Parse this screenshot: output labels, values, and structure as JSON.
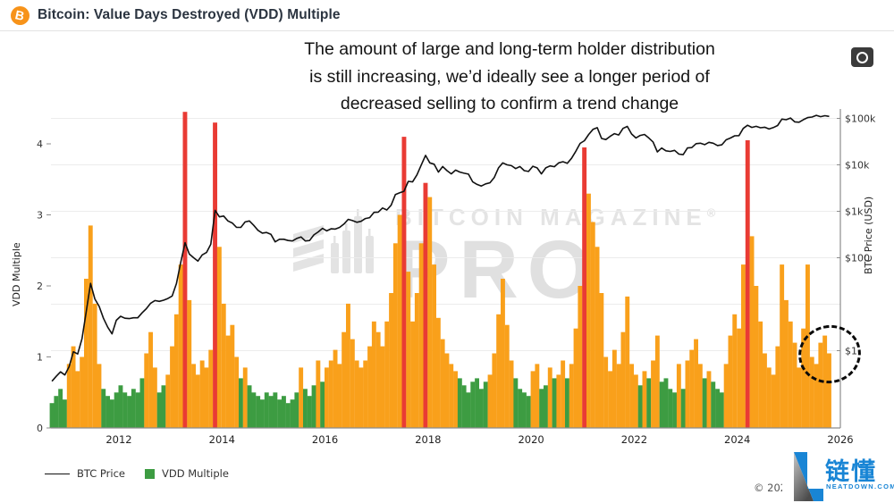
{
  "header": {
    "title": "Bitcoin: Value Days Destroyed (VDD) Multiple",
    "icon": "bitcoin-logo",
    "icon_letter": "B",
    "icon_color": "#f7931a"
  },
  "annotation": {
    "lines": [
      "The amount of large and long-term holder distribution",
      "is still increasing, we’d ideally see a longer period of",
      "decreased selling to confirm a trend change"
    ]
  },
  "toolbar": {
    "camera_button": "screenshot"
  },
  "watermark": {
    "line1": "BITCOIN MAGAZINE",
    "reg": "®",
    "line2": "PRO"
  },
  "legend": {
    "items": [
      {
        "label": "BTC Price",
        "type": "line",
        "color": "#111111"
      },
      {
        "label": "VDD Multiple",
        "type": "square",
        "color": "#3d9c42"
      }
    ]
  },
  "footer": {
    "copyright": "© 2025"
  },
  "brand": {
    "cn": "链懂",
    "site": "NEATDOWN.COM",
    "color": "#1985d5"
  },
  "chart_data": {
    "type": "bar",
    "title": "Bitcoin: Value Days Destroyed (VDD) Multiple",
    "grid": "horizontal-log-decades",
    "x_axis": {
      "ticks": [
        "2012",
        "2014",
        "2016",
        "2018",
        "2020",
        "2022",
        "2024",
        "2026"
      ],
      "range": [
        2010.7,
        2026.0
      ]
    },
    "y_left": {
      "label": "VDD Multiple",
      "ticks": [
        "0",
        "1",
        "2",
        "3",
        "4"
      ],
      "tick_values": [
        0,
        1,
        2,
        3,
        4
      ],
      "range": [
        0,
        4.5
      ]
    },
    "y_right": {
      "label": "BTC Price (USD)",
      "scale": "log",
      "ticks": [
        "$100k",
        "$10k",
        "$1k",
        "$100",
        "$1"
      ],
      "tick_values": [
        100000,
        10000,
        1000,
        100,
        1
      ],
      "gridline_values": [
        100000,
        10000,
        1000,
        100,
        10,
        1
      ]
    },
    "colors": {
      "green": "#3d9c42",
      "orange": "#f9a01b",
      "red": "#e93b34",
      "line": "#111111"
    },
    "green_below": 0.72,
    "t_start": 2010.7,
    "t_step": 0.0833333,
    "series": [
      {
        "name": "VDD Multiple",
        "axis": "left",
        "style": "bars"
      },
      {
        "name": "BTC Price",
        "axis": "right",
        "style": "line"
      }
    ],
    "red_indices": [
      31,
      38,
      82,
      87,
      124,
      162
    ],
    "vdd": [
      0.35,
      0.45,
      0.55,
      0.4,
      0.9,
      1.15,
      0.8,
      1.0,
      2.1,
      2.85,
      1.75,
      0.9,
      0.55,
      0.45,
      0.4,
      0.5,
      0.6,
      0.5,
      0.45,
      0.55,
      0.5,
      0.7,
      1.05,
      1.35,
      0.85,
      0.5,
      0.6,
      0.75,
      1.15,
      1.6,
      2.3,
      4.45,
      1.8,
      0.9,
      0.75,
      0.95,
      0.85,
      1.1,
      4.3,
      2.55,
      1.75,
      1.3,
      1.45,
      1.0,
      0.7,
      0.85,
      0.6,
      0.5,
      0.45,
      0.4,
      0.5,
      0.45,
      0.5,
      0.4,
      0.45,
      0.35,
      0.4,
      0.5,
      0.85,
      0.55,
      0.45,
      0.6,
      0.95,
      0.65,
      0.85,
      0.95,
      1.1,
      0.9,
      1.35,
      1.75,
      1.25,
      0.95,
      0.85,
      0.95,
      1.15,
      1.5,
      1.35,
      1.15,
      1.5,
      1.9,
      2.6,
      3.0,
      4.1,
      2.2,
      1.5,
      1.9,
      2.6,
      3.45,
      3.25,
      2.3,
      1.55,
      1.25,
      1.05,
      0.9,
      0.8,
      0.7,
      0.6,
      0.5,
      0.65,
      0.7,
      0.55,
      0.65,
      0.75,
      1.05,
      1.6,
      2.1,
      1.45,
      0.95,
      0.7,
      0.55,
      0.5,
      0.45,
      0.8,
      0.9,
      0.55,
      0.6,
      0.85,
      0.7,
      0.75,
      0.95,
      0.7,
      0.9,
      1.4,
      2.0,
      3.95,
      3.3,
      2.9,
      2.55,
      1.9,
      1.0,
      0.8,
      1.1,
      0.9,
      1.35,
      1.85,
      0.9,
      0.75,
      0.6,
      0.8,
      0.7,
      0.95,
      1.3,
      0.65,
      0.7,
      0.55,
      0.5,
      0.9,
      0.55,
      0.95,
      1.1,
      1.25,
      0.9,
      0.7,
      0.8,
      0.65,
      0.55,
      0.5,
      0.9,
      1.3,
      1.6,
      1.4,
      2.3,
      4.05,
      2.7,
      2.0,
      1.5,
      1.05,
      0.85,
      0.75,
      1.15,
      2.3,
      1.8,
      1.5,
      1.2,
      0.85,
      1.4,
      2.3,
      1.0,
      0.9,
      1.2,
      1.3,
      1.05
    ],
    "btc_price": [
      0.22,
      0.28,
      0.35,
      0.3,
      0.45,
      0.95,
      0.85,
      1.8,
      7,
      28,
      13,
      9,
      5,
      3.2,
      2.3,
      4.5,
      5.5,
      5,
      4.9,
      5.1,
      5.1,
      6.5,
      8,
      10.5,
      12,
      11.5,
      12.2,
      13.3,
      15,
      28,
      80,
      210,
      120,
      100,
      85,
      115,
      130,
      195,
      1050,
      760,
      790,
      620,
      560,
      450,
      450,
      590,
      620,
      500,
      390,
      340,
      350,
      320,
      220,
      250,
      250,
      235,
      230,
      260,
      280,
      230,
      235,
      310,
      360,
      430,
      380,
      420,
      415,
      450,
      530,
      670,
      630,
      580,
      610,
      700,
      730,
      950,
      960,
      1180,
      1070,
      1350,
      2300,
      2500,
      2700,
      4400,
      4300,
      6100,
      9900,
      16000,
      11000,
      10300,
      7000,
      9200,
      7500,
      6400,
      7700,
      7000,
      6600,
      6300,
      4300,
      3800,
      3500,
      3900,
      4100,
      5300,
      8600,
      11000,
      10000,
      9600,
      8300,
      9200,
      7500,
      7200,
      9300,
      8600,
      6400,
      8600,
      9500,
      9100,
      11000,
      11700,
      10800,
      13800,
      19600,
      28900,
      33000,
      45000,
      58000,
      63000,
      37000,
      35000,
      41000,
      47000,
      43800,
      61000,
      67000,
      46000,
      38000,
      43000,
      45000,
      38000,
      31000,
      19000,
      23000,
      20000,
      19400,
      20500,
      17000,
      16600,
      23100,
      23500,
      28500,
      29200,
      27200,
      30500,
      29200,
      26000,
      27000,
      34500,
      37700,
      42200,
      42600,
      61000,
      71000,
      64000,
      67500,
      62700,
      64600,
      59000,
      63300,
      70200,
      96400,
      93400,
      102000,
      84000,
      82500,
      94000,
      104000,
      107000,
      116000,
      109000,
      114000,
      110000
    ],
    "annotations": {
      "dashed_circle_region": "late-2025 VDD values near 1"
    }
  }
}
